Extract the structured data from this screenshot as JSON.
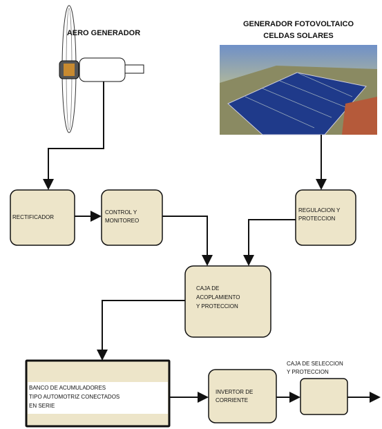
{
  "wind": {
    "title": "AERO GENERADOR"
  },
  "solar": {
    "title": [
      "GENERADOR FOTOVOLTAICO",
      "CELDAS SOLARES"
    ]
  },
  "nodes": [
    {
      "lines": [
        "RECTIFICADOR"
      ]
    },
    {
      "lines": [
        "CONTROL Y",
        "MONITOREO"
      ]
    },
    {
      "lines": [
        "REGULACION Y",
        "PROTECCION"
      ]
    },
    {
      "lines": [
        "CAJA DE",
        "ACOPLAMIENTO",
        "Y PROTECCION"
      ]
    },
    {
      "lines": [
        "BANCO DE ACUMULADORES",
        "TIPO AUTOMOTRIZ CONECTADOS",
        "EN SERIE"
      ]
    },
    {
      "lines": [
        "INVERTOR DE",
        "CORRIENTE"
      ]
    },
    {
      "lines": [
        "CAJA DE SELECCION",
        "Y PROTECCION"
      ]
    }
  ]
}
